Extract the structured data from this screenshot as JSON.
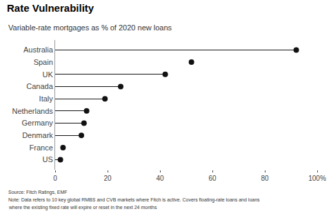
{
  "chart_data": {
    "type": "lollipop",
    "orientation": "horizontal",
    "title": "Rate Vulnerability",
    "subtitle": "Variable-rate mortgages as % of 2020 new loans",
    "annotations": [
      "Source: Fitch Ratings, EMF",
      "Note: Data refers to 10 key global RMBS and CVB markets where Fitch is active. Covers floating-rate loans and loans",
      "where the existing fixed rate will expire or reset in the next 24 months"
    ],
    "categories": [
      "Australia",
      "Spain",
      "UK",
      "Canada",
      "Italy",
      "Netherlands",
      "Germany",
      "Denmark",
      "France",
      "US"
    ],
    "values": [
      92,
      52,
      42,
      25,
      19,
      12,
      11,
      10,
      3,
      2
    ],
    "color": "#111111",
    "xlim": [
      0,
      100
    ],
    "xticks": [
      0,
      20,
      40,
      60,
      80,
      {
        "value": 100,
        "label": "100%"
      }
    ],
    "grid": false
  }
}
